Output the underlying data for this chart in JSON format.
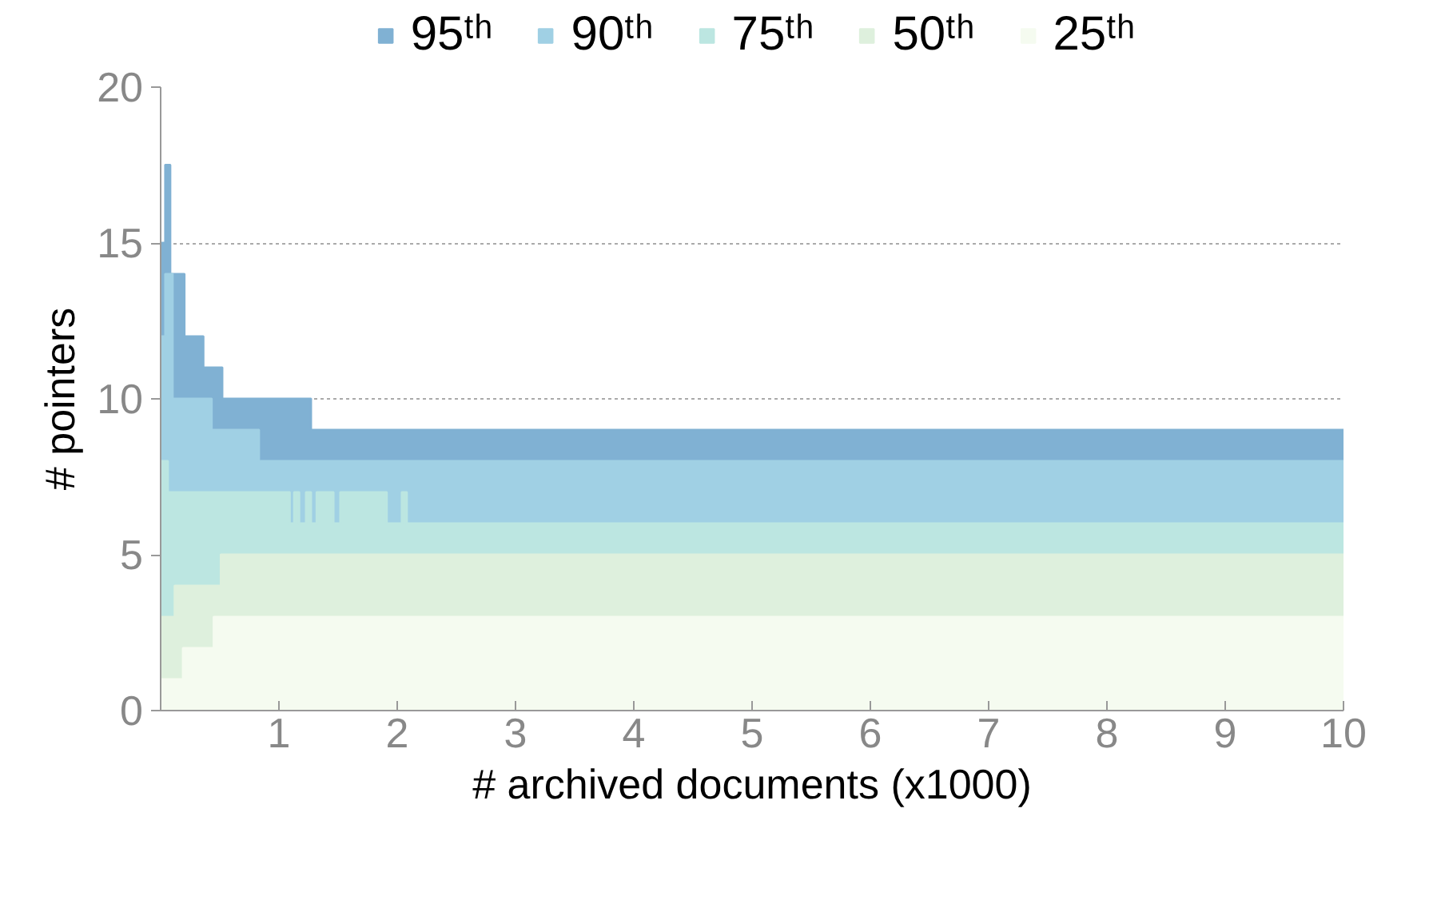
{
  "chart_data": {
    "type": "area",
    "xlabel": "# archived documents (x1000)",
    "ylabel": "# pointers",
    "xlim": [
      0,
      10
    ],
    "ylim": [
      0,
      20
    ],
    "xticks": [
      {
        "value": 0,
        "label": null
      },
      1,
      2,
      3,
      4,
      5,
      6,
      7,
      8,
      9,
      10
    ],
    "yticks": [
      0,
      5,
      10,
      15,
      20
    ],
    "grid": "y",
    "legend": "top",
    "series": [
      {
        "name": "95ᵗʰ",
        "color": "#80b1d3",
        "x": [
          0,
          0.04,
          0.04,
          0.08,
          0.08,
          0.2,
          0.2,
          0.36,
          0.36,
          0.52,
          0.52,
          1.27,
          1.27,
          10
        ],
        "values": [
          15,
          15,
          17.5,
          17.5,
          14,
          14,
          12,
          12,
          11,
          11,
          10,
          10,
          9,
          9
        ]
      },
      {
        "name": "90ᵗʰ",
        "color": "#a0d0e4",
        "x": [
          0,
          0.04,
          0.04,
          0.1,
          0.1,
          0.43,
          0.43,
          0.83,
          0.83,
          10
        ],
        "values": [
          12,
          12,
          14,
          14,
          10,
          10,
          9,
          9,
          8,
          8
        ]
      },
      {
        "name": "75ᵗʰ",
        "color": "#bce6e1",
        "x": [
          0,
          0.06,
          0.06,
          1.09,
          1.09,
          1.13,
          1.13,
          1.17,
          1.17,
          1.23,
          1.23,
          1.27,
          1.27,
          1.32,
          1.32,
          1.46,
          1.46,
          1.52,
          1.52,
          1.91,
          1.91,
          2.04,
          2.04,
          2.08,
          2.08,
          10
        ],
        "values": [
          8,
          8,
          7,
          7,
          6,
          6,
          7,
          7,
          6,
          6,
          7,
          7,
          6,
          6,
          7,
          7,
          6,
          6,
          7,
          7,
          6,
          6,
          7,
          7,
          6,
          6
        ]
      },
      {
        "name": "50ᵗʰ",
        "color": "#def0dd",
        "x": [
          0,
          0.12,
          0.12,
          0.51,
          0.51,
          10
        ],
        "values": [
          3,
          3,
          4,
          4,
          5,
          5
        ]
      },
      {
        "name": "25ᵗʰ",
        "color": "#f5fbf0",
        "x": [
          0,
          0.19,
          0.19,
          0.45,
          0.45,
          10
        ],
        "values": [
          1,
          1,
          2,
          2,
          3,
          3
        ]
      }
    ]
  }
}
